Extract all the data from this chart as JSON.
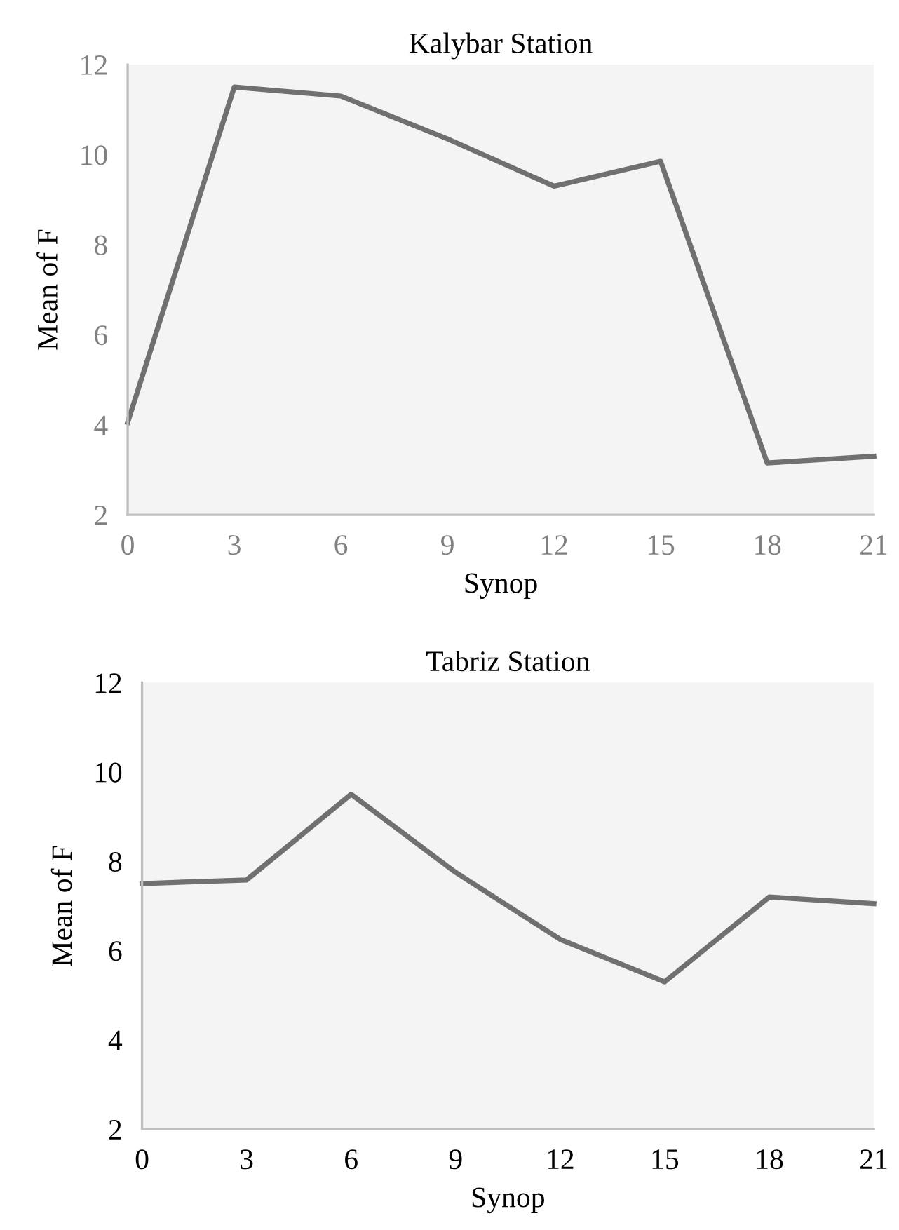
{
  "chart_data": [
    {
      "type": "line",
      "title": "Kalybar Station",
      "xlabel": "Synop",
      "ylabel": "Mean of F",
      "x": [
        0,
        3,
        6,
        9,
        12,
        15,
        18,
        21
      ],
      "series": [
        {
          "color": "#707070",
          "values": [
            4.05,
            11.5,
            11.3,
            10.35,
            9.3,
            9.85,
            3.15,
            3.3
          ]
        }
      ],
      "xlim": [
        0,
        21
      ],
      "xticks": [
        0,
        3,
        6,
        9,
        12,
        15,
        18,
        21
      ],
      "ylim": [
        2,
        12
      ],
      "yticks": [
        2,
        4,
        6,
        8,
        10,
        12
      ],
      "grid": false,
      "legend": false
    },
    {
      "type": "line",
      "title": "Tabriz Station",
      "xlabel": "Synop",
      "ylabel": "Mean of F",
      "x": [
        0,
        3,
        6,
        9,
        12,
        15,
        18,
        21
      ],
      "series": [
        {
          "color": "#707070",
          "values": [
            7.5,
            7.58,
            9.5,
            7.75,
            6.25,
            5.3,
            7.2,
            7.05
          ]
        }
      ],
      "xlim": [
        0,
        21
      ],
      "xticks": [
        0,
        3,
        6,
        9,
        12,
        15,
        18,
        21
      ],
      "ylim": [
        2,
        12
      ],
      "yticks": [
        2,
        4,
        6,
        8,
        10,
        12
      ],
      "grid": false,
      "legend": false
    }
  ]
}
